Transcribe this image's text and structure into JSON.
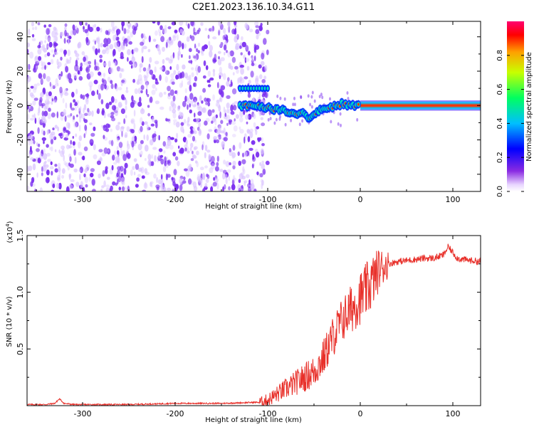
{
  "figure": {
    "title": "C2E1.2023.136.10.34.G11"
  },
  "colors": {
    "snr_line": "#e8302a",
    "axis": "#000000",
    "spectrogram_dots": "#7b2ff0",
    "spectrogram_fade": "#d9c2ff"
  },
  "chart_data": [
    {
      "type": "heatmap",
      "title": "",
      "xlabel": "Height of straight line (km)",
      "ylabel": "Frequency (Hz)",
      "xlim": [
        -360,
        130
      ],
      "ylim": [
        -50,
        49
      ],
      "xticks": [
        -300,
        -200,
        -100,
        0,
        100
      ],
      "yticks": [
        -40,
        -20,
        0,
        20,
        40
      ],
      "ridge": {
        "description_points_x": [
          -130,
          -110,
          -95,
          -80,
          -70,
          -60,
          -55,
          -50,
          -45,
          -40,
          -30,
          -20,
          -10,
          0,
          130
        ],
        "frequency_hz": [
          0,
          0,
          -2,
          -3,
          -5,
          -4,
          -8,
          -5,
          -3,
          -2,
          -1,
          1,
          0,
          0,
          0
        ]
      },
      "side_band": {
        "x": [
          -130,
          -100
        ],
        "frequency_hz": 10
      },
      "colorbar": {
        "label": "Normalized spectral amplitude",
        "range": [
          0.0,
          1.0
        ],
        "ticks": [
          "0.0",
          "0.2",
          "0.4",
          "0.6",
          "0.8"
        ],
        "tick_values": [
          0.0,
          0.2,
          0.4,
          0.6,
          0.8
        ],
        "colormap": "rainbow"
      }
    },
    {
      "type": "line",
      "title": "",
      "xlabel": "Height of straight line (km)",
      "ylabel": "SNR (10 * v/v)",
      "scale_label": "(x10^4)",
      "scale_base": "(x10",
      "scale_exp": "4",
      "scale_close": ")",
      "xlim": [
        -360,
        130
      ],
      "ylim": [
        0,
        1.5
      ],
      "xticks": [
        -300,
        -200,
        -100,
        0,
        100
      ],
      "yticks": [
        0.5,
        1.0,
        1.5
      ],
      "ytick_labels": [
        "0.5",
        "1.0",
        "1.5"
      ],
      "series": [
        {
          "x": [
            -360,
            -340,
            -330,
            -325,
            -320,
            -310,
            -300,
            -250,
            -200,
            -150,
            -110,
            -100,
            -90,
            -80,
            -70,
            -60,
            -50,
            -40,
            -30,
            -20,
            -10,
            0,
            10,
            20,
            30,
            40,
            50,
            60,
            70,
            80,
            90,
            95,
            100,
            105,
            110,
            120,
            130
          ],
          "values": [
            0.01,
            0.01,
            0.02,
            0.06,
            0.02,
            0.01,
            0.01,
            0.01,
            0.02,
            0.02,
            0.03,
            0.05,
            0.1,
            0.15,
            0.2,
            0.25,
            0.3,
            0.42,
            0.6,
            0.75,
            0.85,
            0.95,
            1.05,
            1.2,
            1.25,
            1.27,
            1.28,
            1.29,
            1.3,
            1.3,
            1.33,
            1.4,
            1.35,
            1.3,
            1.29,
            1.28,
            1.27
          ]
        }
      ]
    }
  ]
}
